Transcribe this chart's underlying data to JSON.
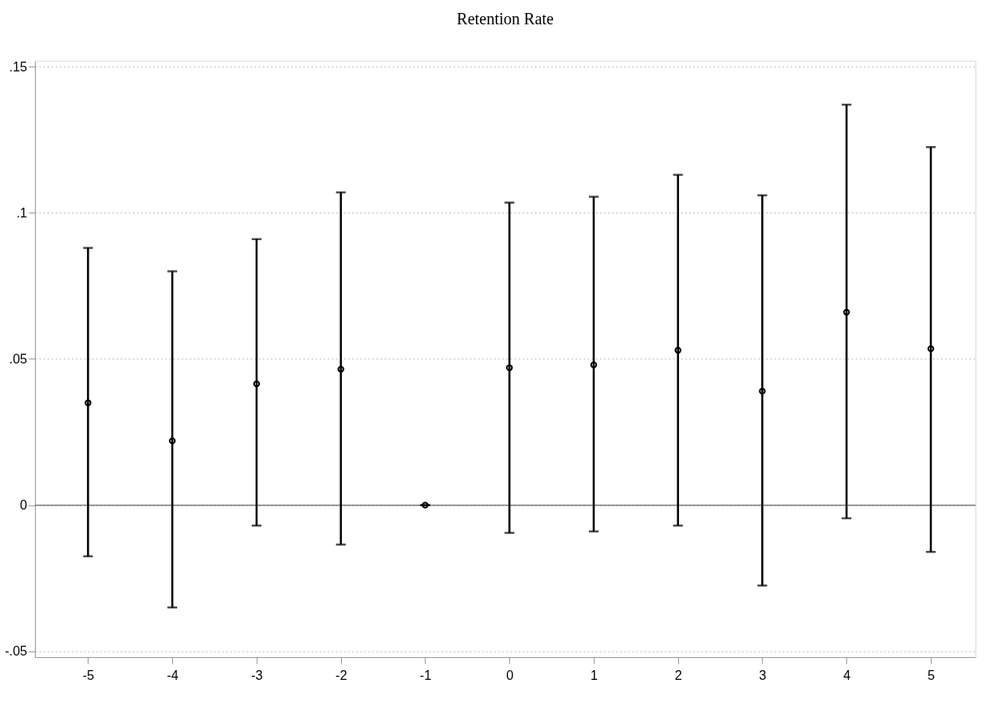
{
  "chart_data": {
    "type": "scatter",
    "title": "Retention Rate",
    "x": [
      -5,
      -4,
      -3,
      -2,
      -1,
      0,
      1,
      2,
      3,
      4,
      5
    ],
    "series": [
      {
        "color": "#000000",
        "values": [
          0.035,
          0.022,
          0.0415,
          0.0465,
          0,
          0.047,
          0.048,
          0.053,
          0.039,
          0.066,
          0.0535
        ],
        "errors": [
          [
            -0.0175,
            0.088
          ],
          [
            -0.035,
            0.08
          ],
          [
            -0.007,
            0.091
          ],
          [
            -0.0135,
            0.107
          ],
          [
            0,
            0
          ],
          [
            -0.0095,
            0.1035
          ],
          [
            -0.009,
            0.1055
          ],
          [
            -0.007,
            0.113
          ],
          [
            -0.0275,
            0.106
          ],
          [
            -0.0045,
            0.137
          ],
          [
            -0.016,
            0.1225
          ]
        ]
      }
    ],
    "xlim": [
      -5.63,
      5.53
    ],
    "xticks": [
      -5,
      -4,
      -3,
      -2,
      -1,
      0,
      1,
      2,
      3,
      4,
      5
    ],
    "ylim": [
      -0.052,
      0.152
    ],
    "yticks": [
      {
        "value": -0.05,
        "label": "-.05"
      },
      {
        "value": 0,
        "label": "0"
      },
      {
        "value": 0.05,
        "label": ".05"
      },
      {
        "value": 0.1,
        "label": ".1"
      },
      {
        "value": 0.15,
        "label": ".15"
      }
    ],
    "ref_lines": [
      {
        "axis": "y",
        "value": 0,
        "color": "#808080"
      }
    ],
    "grid": "y",
    "marker": "circle"
  }
}
